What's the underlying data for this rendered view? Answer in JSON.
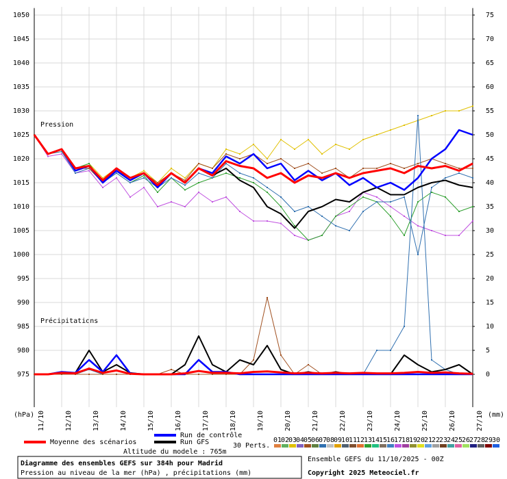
{
  "chart_data": {
    "type": "line",
    "title": "Diagramme des ensembles GEFS sur 384h pour Madrid",
    "subtitle": "Pression au niveau de la mer (hPa) , précipitations (mm)",
    "run_label": "Ensemble GEFS du 11/10/2025 - 00Z",
    "copyright": "Copyright 2025 Meteociel.fr",
    "altitude": "Altitude du modele : 765m",
    "pressure_label": "Pression",
    "precip_label": "Précipitations",
    "y_unit": "(hPa)",
    "y2_unit": "(mm)",
    "perturbations_label": "30 Perts.",
    "perturbations": [
      {
        "name": "01",
        "color": "#e08040"
      },
      {
        "name": "02",
        "color": "#60b060"
      },
      {
        "name": "03",
        "color": "#e0c000"
      },
      {
        "name": "04",
        "color": "#8060c0"
      },
      {
        "name": "05",
        "color": "#a05020"
      },
      {
        "name": "06",
        "color": "#608040"
      },
      {
        "name": "07",
        "color": "#3070b0"
      },
      {
        "name": "08",
        "color": "#c0c0c0"
      },
      {
        "name": "09",
        "color": "#e0a000"
      },
      {
        "name": "10",
        "color": "#506070"
      },
      {
        "name": "11",
        "color": "#805030"
      },
      {
        "name": "12",
        "color": "#e07030"
      },
      {
        "name": "13",
        "color": "#30a030"
      },
      {
        "name": "14",
        "color": "#20c080"
      },
      {
        "name": "15",
        "color": "#807060"
      },
      {
        "name": "16",
        "color": "#4080c0"
      },
      {
        "name": "17",
        "color": "#c050e0"
      },
      {
        "name": "18",
        "color": "#a040a0"
      },
      {
        "name": "19",
        "color": "#909030"
      },
      {
        "name": "20",
        "color": "#e0e020"
      },
      {
        "name": "21",
        "color": "#60a0e0"
      },
      {
        "name": "22",
        "color": "#a0a0a0"
      },
      {
        "name": "23",
        "color": "#704020"
      },
      {
        "name": "24",
        "color": "#40a0a0"
      },
      {
        "name": "25",
        "color": "#e060a0"
      },
      {
        "name": "26",
        "color": "#a0e060"
      },
      {
        "name": "27",
        "color": "#202080"
      },
      {
        "name": "28",
        "color": "#606060"
      },
      {
        "name": "29",
        "color": "#800000"
      },
      {
        "name": "30",
        "color": "#2060e0"
      }
    ],
    "x": [
      0,
      12,
      24,
      36,
      48,
      60,
      72,
      84,
      96,
      108,
      120,
      132,
      144,
      156,
      168,
      180,
      192,
      204,
      216,
      228,
      240,
      252,
      264,
      276,
      288,
      300,
      312,
      324,
      336,
      348,
      360,
      372,
      384
    ],
    "xlim": [
      0,
      384
    ],
    "xticks": [
      {
        "value": 0,
        "label": "11/10"
      },
      {
        "value": 24,
        "label": "12/10"
      },
      {
        "value": 48,
        "label": "13/10"
      },
      {
        "value": 72,
        "label": "14/10"
      },
      {
        "value": 96,
        "label": "15/10"
      },
      {
        "value": 120,
        "label": "16/10"
      },
      {
        "value": 144,
        "label": "17/10"
      },
      {
        "value": 168,
        "label": "18/10"
      },
      {
        "value": 192,
        "label": "19/10"
      },
      {
        "value": 216,
        "label": "20/10"
      },
      {
        "value": 240,
        "label": "21/10"
      },
      {
        "value": 264,
        "label": "22/10"
      },
      {
        "value": 288,
        "label": "23/10"
      },
      {
        "value": 312,
        "label": "24/10"
      },
      {
        "value": 336,
        "label": "25/10"
      },
      {
        "value": 360,
        "label": "26/10"
      },
      {
        "value": 384,
        "label": "27/10"
      }
    ],
    "ylim": [
      975,
      1050
    ],
    "yticks": [
      975,
      980,
      985,
      990,
      995,
      1000,
      1005,
      1010,
      1015,
      1020,
      1025,
      1030,
      1035,
      1040,
      1045,
      1050
    ],
    "y2lim": [
      0,
      75
    ],
    "y2ticks": [
      0,
      5,
      10,
      15,
      20,
      25,
      30,
      35,
      40,
      45,
      50,
      55,
      60,
      65,
      70,
      75
    ],
    "grid": true,
    "series": [
      {
        "color": "#e0c000",
        "width": 1,
        "values": [
          1025,
          1021,
          1021.5,
          1018,
          1019,
          1016,
          1018,
          1016,
          1017.5,
          1015,
          1018,
          1016,
          1019,
          1018,
          1022,
          1021,
          1023,
          1020,
          1024,
          1022,
          1024,
          1021,
          1023,
          1022,
          1024,
          1025,
          1026,
          1027,
          1028,
          1029,
          1030,
          1030,
          1031
        ]
      },
      {
        "color": "#c050e0",
        "width": 1,
        "values": [
          1025,
          1020.5,
          1021,
          1017,
          1017.5,
          1014,
          1016,
          1012,
          1014,
          1010,
          1011,
          1010,
          1013,
          1011,
          1012,
          1009,
          1007,
          1007,
          1006.5,
          1004,
          1003,
          1004,
          1008,
          1009,
          1013,
          1012,
          1010,
          1008,
          1006,
          1005,
          1004,
          1004,
          1007
        ]
      },
      {
        "color": "#30a030",
        "width": 1,
        "values": [
          1025,
          1021,
          1022,
          1018,
          1019,
          1015,
          1017,
          1015,
          1016.5,
          1013,
          1016,
          1013.5,
          1015,
          1016,
          1017,
          1016,
          1015,
          1013,
          1010,
          1006,
          1003,
          1004,
          1008,
          1010,
          1012,
          1011,
          1008,
          1004,
          1011,
          1013,
          1012,
          1009,
          1010
        ]
      },
      {
        "color": "#3070b0",
        "width": 1,
        "values": [
          1025,
          1021,
          1021.5,
          1017,
          1018,
          1015,
          1017,
          1015,
          1016,
          1014,
          1016,
          1014.5,
          1017,
          1016,
          1019,
          1017,
          1016,
          1014,
          1012,
          1009,
          1010,
          1008,
          1006,
          1005,
          1009,
          1011,
          1011,
          1012,
          1000,
          1014,
          1016,
          1017,
          1016
        ]
      },
      {
        "color": "#a05020",
        "width": 1,
        "values": [
          1025,
          1021,
          1022,
          1018,
          1018,
          1015,
          1017.5,
          1016,
          1017,
          1015,
          1017,
          1015.5,
          1019,
          1018,
          1021,
          1020,
          1021,
          1019,
          1020,
          1018,
          1019,
          1017,
          1018,
          1016,
          1018,
          1018,
          1019,
          1018,
          1019,
          1020,
          1019,
          1018,
          1018
        ]
      },
      {
        "color": "#3070b0",
        "width": 1,
        "axis": "y2",
        "values": [
          0,
          0,
          0,
          0,
          1,
          0,
          0,
          0,
          0,
          0,
          0,
          0,
          0,
          0,
          0,
          0,
          0,
          0,
          0,
          0,
          0,
          0,
          0,
          0,
          0,
          5,
          5,
          10,
          54,
          3,
          1,
          0,
          0
        ]
      },
      {
        "color": "#a05020",
        "width": 1,
        "axis": "y2",
        "values": [
          0,
          0,
          0,
          0,
          0,
          0,
          0,
          0,
          0,
          0,
          1,
          0,
          0,
          0,
          0,
          0,
          3,
          16,
          4,
          0,
          2,
          0,
          0,
          0,
          0,
          0,
          0,
          0,
          0,
          0,
          0,
          0,
          0
        ]
      },
      {
        "name": "Run GFS",
        "color": "#000000",
        "width": 2,
        "values": [
          1025,
          1021,
          1022,
          1017.5,
          1018.5,
          1015,
          1017.5,
          1015.5,
          1017,
          1014,
          1017,
          1015,
          1018,
          1016.5,
          1018,
          1015.5,
          1014,
          1010,
          1008.5,
          1005.5,
          1009,
          1010,
          1011.5,
          1011,
          1013,
          1014,
          1012.5,
          1012.5,
          1014,
          1015,
          1015.5,
          1014.5,
          1014
        ]
      },
      {
        "color": "#000000",
        "width": 2,
        "axis": "y2",
        "values": [
          0,
          0,
          0.5,
          0.3,
          5,
          0.5,
          2,
          0.3,
          0,
          0,
          0,
          2,
          8,
          2,
          0.5,
          3,
          2,
          6,
          1,
          0,
          0.5,
          0,
          0.5,
          0,
          0,
          0,
          0,
          4,
          2,
          0.5,
          1,
          2,
          0
        ]
      },
      {
        "name": "Run de contrôle",
        "color": "#0000ff",
        "width": 2.5,
        "values": [
          1025,
          1021,
          1022,
          1017.5,
          1018.5,
          1015,
          1017.5,
          1015.5,
          1017,
          1014,
          1017,
          1015,
          1018,
          1017,
          1020.5,
          1019,
          1021,
          1018,
          1019,
          1015.5,
          1017.5,
          1015.5,
          1017,
          1014.5,
          1016,
          1014,
          1015,
          1013.5,
          1016,
          1020,
          1022,
          1026,
          1025
        ]
      },
      {
        "color": "#0000ff",
        "width": 2.5,
        "axis": "y2",
        "values": [
          0,
          0,
          0.5,
          0.3,
          3,
          0.5,
          4,
          0.2,
          0,
          0,
          0,
          0,
          3,
          0.5,
          0.5,
          0,
          0,
          0,
          0,
          0,
          0,
          0,
          0,
          0,
          0,
          0,
          0,
          0,
          0,
          0,
          0,
          0,
          0
        ]
      },
      {
        "name": "Moyenne des scénarios",
        "color": "#ff0000",
        "width": 3,
        "values": [
          1025,
          1021,
          1022,
          1018,
          1018.5,
          1015.5,
          1018,
          1016,
          1017,
          1014.5,
          1017,
          1015,
          1018,
          1016.5,
          1019.5,
          1018.5,
          1018,
          1016,
          1017,
          1015,
          1016.5,
          1016,
          1017,
          1016,
          1017,
          1017.5,
          1018,
          1017,
          1018.5,
          1018,
          1018.5,
          1017.5,
          1019
        ]
      },
      {
        "color": "#ff0000",
        "width": 3,
        "axis": "y2",
        "values": [
          0,
          0,
          0.3,
          0.2,
          1.2,
          0.3,
          0.8,
          0.1,
          0,
          0,
          0,
          0.2,
          0.7,
          0.3,
          0.3,
          0.2,
          0.5,
          0.6,
          0.4,
          0.2,
          0.3,
          0.2,
          0.3,
          0.2,
          0.3,
          0.2,
          0.2,
          0.3,
          0.5,
          0.3,
          0.4,
          0.2,
          0.1
        ]
      }
    ]
  }
}
